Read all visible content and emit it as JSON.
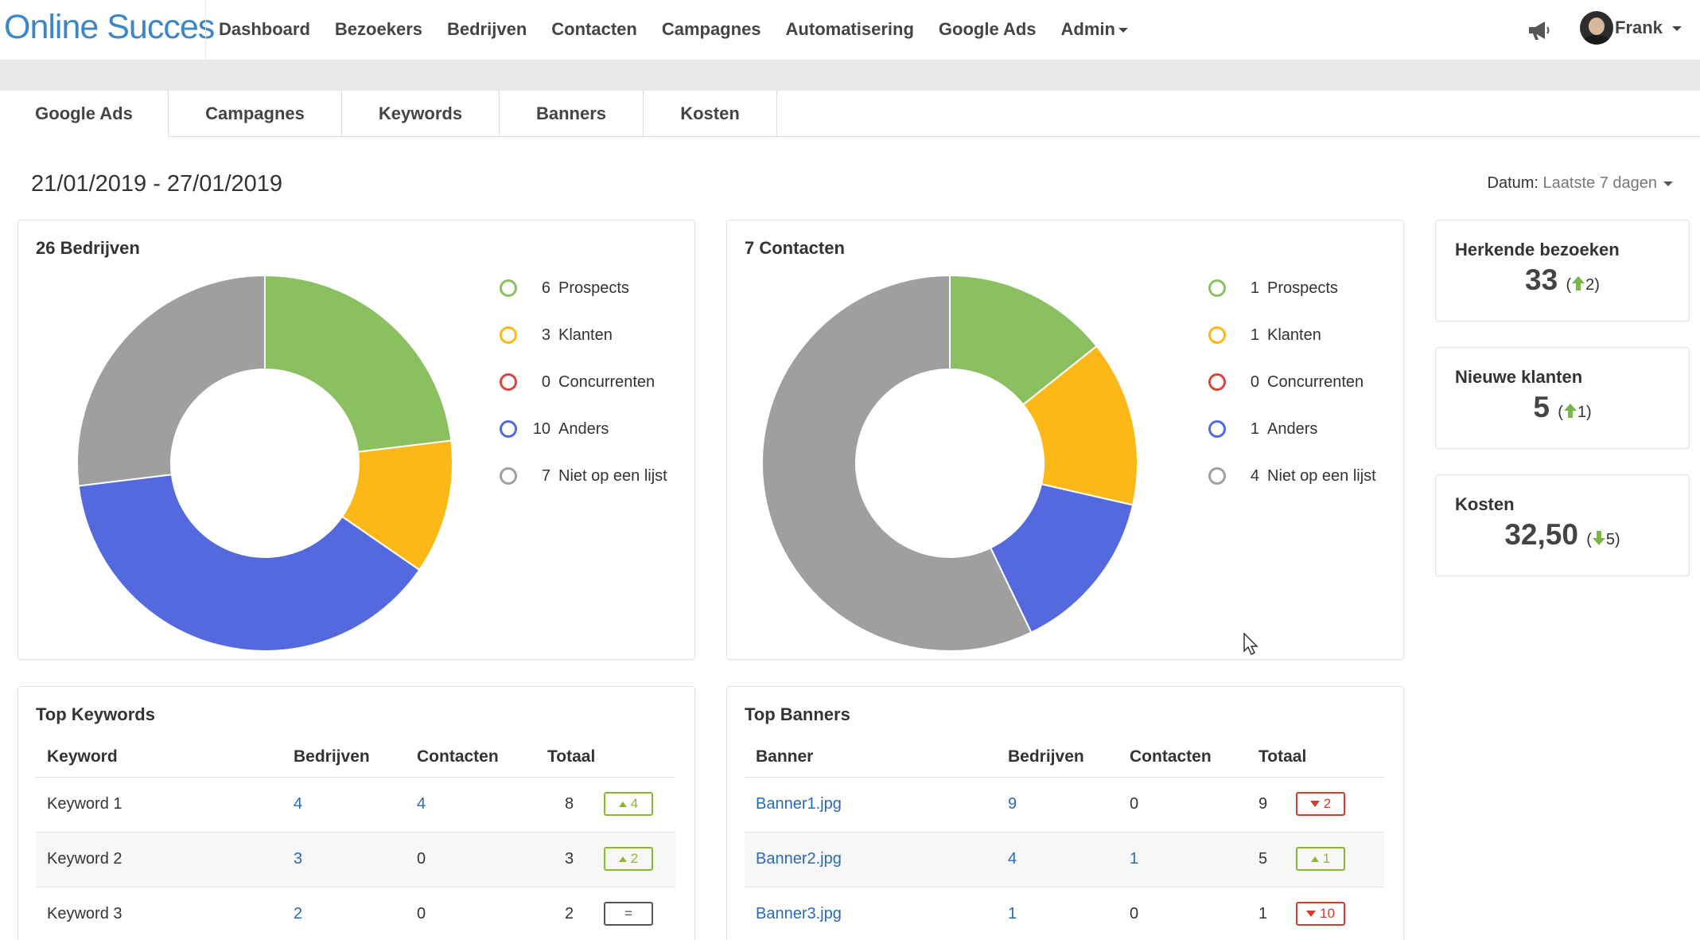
{
  "app": {
    "brand": "Online Succes"
  },
  "nav": {
    "items": [
      "Dashboard",
      "Bezoekers",
      "Bedrijven",
      "Contacten",
      "Campagnes",
      "Automatisering",
      "Google Ads",
      "Admin"
    ],
    "user": "Frank"
  },
  "tabs": [
    "Google Ads",
    "Campagnes",
    "Keywords",
    "Banners",
    "Kosten"
  ],
  "date_range": "21/01/2019 - 27/01/2019",
  "datum": {
    "label": "Datum:",
    "value": "Laatste 7 dagen"
  },
  "colors": {
    "prospects": "#8bc060",
    "klanten": "#fbb817",
    "concurrenten": "#d9463d",
    "anders": "#5469dd",
    "niet": "#a09f9f",
    "brand": "#3b87c8",
    "link": "#2a6ab5",
    "up": "#8ab833",
    "down": "#d23b2e"
  },
  "chart_data": [
    {
      "type": "pie",
      "title": "26 Bedrijven",
      "categories": [
        "Prospects",
        "Klanten",
        "Concurrenten",
        "Anders",
        "Niet op een lijst"
      ],
      "values": [
        6,
        3,
        0,
        10,
        7
      ],
      "legend_placement": "right"
    },
    {
      "type": "pie",
      "title": "7 Contacten",
      "categories": [
        "Prospects",
        "Klanten",
        "Concurrenten",
        "Anders",
        "Niet op een lijst"
      ],
      "values": [
        1,
        1,
        0,
        1,
        4
      ],
      "legend_placement": "right"
    }
  ],
  "stats": [
    {
      "title": "Herkende bezoeken",
      "value": "33",
      "delta": "2",
      "direction": "up"
    },
    {
      "title": "Nieuwe klanten",
      "value": "5",
      "delta": "1",
      "direction": "up"
    },
    {
      "title": "Kosten",
      "value": "32,50",
      "delta": "5",
      "direction": "down"
    }
  ],
  "top_keywords": {
    "title": "Top Keywords",
    "headers": [
      "Keyword",
      "Bedrijven",
      "Contacten",
      "Totaal"
    ],
    "rows": [
      {
        "name": "Keyword 1",
        "bedrijven": "4",
        "contacten": "4",
        "totaal": "8",
        "trend": "up",
        "trend_value": "4"
      },
      {
        "name": "Keyword 2",
        "bedrijven": "3",
        "contacten": "0",
        "totaal": "3",
        "trend": "up",
        "trend_value": "2"
      },
      {
        "name": "Keyword 3",
        "bedrijven": "2",
        "contacten": "0",
        "totaal": "2",
        "trend": "eq",
        "trend_value": "="
      }
    ]
  },
  "top_banners": {
    "title": "Top Banners",
    "headers": [
      "Banner",
      "Bedrijven",
      "Contacten",
      "Totaal"
    ],
    "rows": [
      {
        "name": "Banner1.jpg",
        "bedrijven": "9",
        "contacten": "0",
        "totaal": "9",
        "trend": "down",
        "trend_value": "2"
      },
      {
        "name": "Banner2.jpg",
        "bedrijven": "4",
        "contacten": "1",
        "totaal": "5",
        "trend": "up",
        "trend_value": "1"
      },
      {
        "name": "Banner3.jpg",
        "bedrijven": "1",
        "contacten": "0",
        "totaal": "1",
        "trend": "down",
        "trend_value": "10"
      }
    ]
  }
}
